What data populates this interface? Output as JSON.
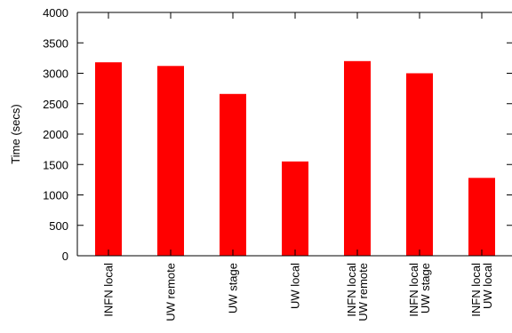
{
  "chart_data": {
    "type": "bar",
    "title": "",
    "xlabel": "",
    "ylabel": "Time (secs)",
    "ylim": [
      0,
      4000
    ],
    "yticks": [
      0,
      500,
      1000,
      1500,
      2000,
      2500,
      3000,
      3500,
      4000
    ],
    "grid": false,
    "bar_color": "#ff0000",
    "categories": [
      [
        "INFN local"
      ],
      [
        "UW remote"
      ],
      [
        "UW stage"
      ],
      [
        "UW local"
      ],
      [
        "INFN local",
        "UW remote"
      ],
      [
        "INFN local",
        "UW stage"
      ],
      [
        "INFN local",
        "UW local"
      ]
    ],
    "values": [
      3180,
      3120,
      2660,
      1550,
      3200,
      3000,
      1280
    ]
  }
}
